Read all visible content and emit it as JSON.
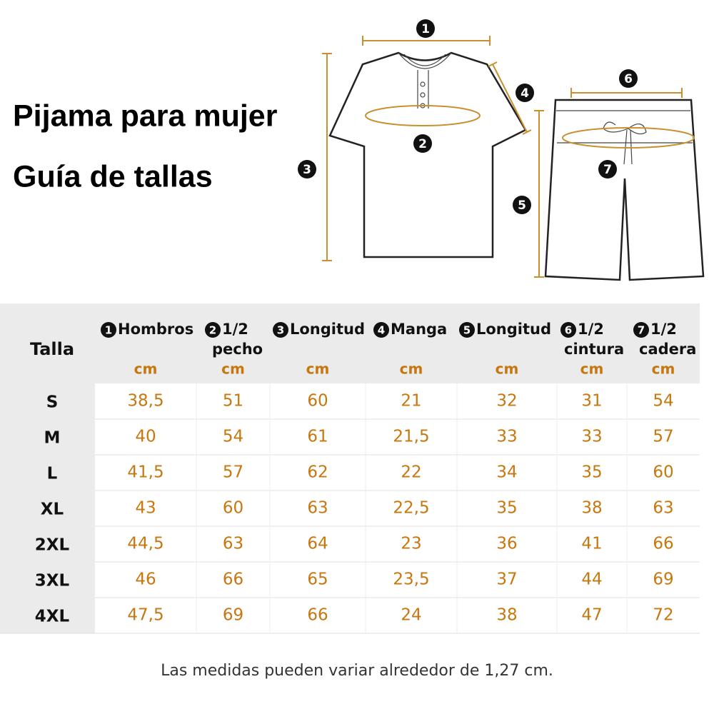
{
  "header": {
    "title_lines": [
      "Pijama para mujer",
      "Guía de tallas"
    ]
  },
  "diagram": {
    "markers": [
      "1",
      "2",
      "3",
      "4",
      "5",
      "6",
      "7"
    ]
  },
  "table": {
    "corner": "Talla",
    "columns": [
      {
        "num": "1",
        "lines": [
          "Hombros"
        ],
        "unit": "cm"
      },
      {
        "num": "2",
        "lines": [
          "1/2",
          "pecho"
        ],
        "unit": "cm"
      },
      {
        "num": "3",
        "lines": [
          "Longitud"
        ],
        "unit": "cm"
      },
      {
        "num": "4",
        "lines": [
          "Manga"
        ],
        "unit": "cm"
      },
      {
        "num": "5",
        "lines": [
          "Longitud"
        ],
        "unit": "cm"
      },
      {
        "num": "6",
        "lines": [
          "1/2",
          "cintura"
        ],
        "unit": "cm"
      },
      {
        "num": "7",
        "lines": [
          "1/2",
          "cadera"
        ],
        "unit": "cm"
      }
    ],
    "rows": [
      {
        "size": "S",
        "cells": [
          "38,5",
          "51",
          "60",
          "21",
          "32",
          "31",
          "54"
        ]
      },
      {
        "size": "M",
        "cells": [
          "40",
          "54",
          "61",
          "21,5",
          "33",
          "33",
          "57"
        ]
      },
      {
        "size": "L",
        "cells": [
          "41,5",
          "57",
          "62",
          "22",
          "34",
          "35",
          "60"
        ]
      },
      {
        "size": "XL",
        "cells": [
          "43",
          "60",
          "63",
          "22,5",
          "35",
          "38",
          "63"
        ]
      },
      {
        "size": "2XL",
        "cells": [
          "44,5",
          "63",
          "64",
          "23",
          "36",
          "41",
          "66"
        ]
      },
      {
        "size": "3XL",
        "cells": [
          "46",
          "66",
          "65",
          "23,5",
          "37",
          "44",
          "69"
        ]
      },
      {
        "size": "4XL",
        "cells": [
          "47,5",
          "69",
          "66",
          "24",
          "38",
          "47",
          "72"
        ]
      }
    ]
  },
  "footer": {
    "note": "Las medidas pueden variar alrededor de 1,27 cm."
  }
}
